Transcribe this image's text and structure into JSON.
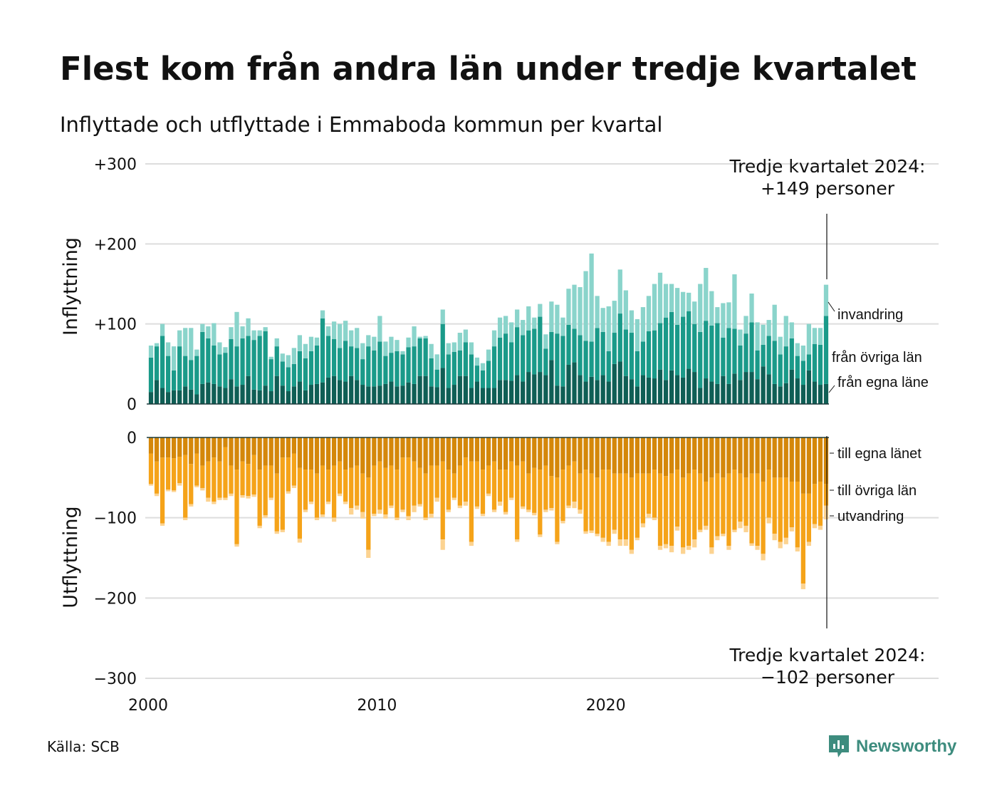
{
  "title": "Flest kom från andra län under tredje kvartalet",
  "subtitle": "Inflyttade och utflyttade i Emmaboda kommun per kvartal",
  "source": "Källa: SCB",
  "brand": "Newsworthy",
  "colors": {
    "in_own": "#0f5e55",
    "in_other": "#1a9a89",
    "in_immig": "#8ad4cb",
    "out_own": "#d4870a",
    "out_other": "#f5a319",
    "out_emig": "#fcd391",
    "grid": "#dddddd",
    "brand": "#3d8c7e"
  },
  "annotations": {
    "top": [
      "Tredje kvartalet 2024:",
      "+149 personer"
    ],
    "bottom": [
      "Tredje kvartalet 2024:",
      "−102 personer"
    ]
  },
  "chart_data": [
    {
      "type": "bar",
      "stacked": true,
      "ylabel": "Inflyttning",
      "ylim": [
        0,
        300
      ],
      "yticks": [
        "0",
        "+100",
        "+200",
        "+300"
      ],
      "x_start": "2000 Q1",
      "x_end": "2024 Q3",
      "xticks": [
        "2000",
        "2010",
        "2020"
      ],
      "series": [
        {
          "name": "från egna läne",
          "values": [
            15,
            30,
            20,
            15,
            17,
            17,
            22,
            18,
            12,
            25,
            27,
            25,
            22,
            20,
            31,
            22,
            24,
            35,
            18,
            17,
            23,
            16,
            35,
            23,
            16,
            22,
            28,
            17,
            24,
            25,
            27,
            33,
            35,
            30,
            28,
            35,
            30,
            24,
            22,
            22,
            23,
            25,
            28,
            22,
            23,
            27,
            25,
            35,
            35,
            22,
            21,
            45,
            20,
            24,
            35,
            35,
            20,
            28,
            20,
            20,
            20,
            30,
            30,
            29,
            36,
            28,
            40,
            37,
            40,
            36,
            55,
            23,
            22,
            49,
            52,
            36,
            28,
            34,
            30,
            36,
            28,
            50,
            53,
            35,
            31,
            22,
            36,
            33,
            32,
            43,
            30,
            42,
            36,
            33,
            44,
            40,
            20,
            32,
            28,
            25,
            35,
            25,
            38,
            30,
            40,
            40,
            31,
            47,
            37,
            25,
            22,
            26,
            43,
            32,
            24,
            42,
            28,
            24,
            25
          ],
          "label": "från egna läne"
        },
        {
          "name": "från övriga län",
          "values": [
            43,
            42,
            65,
            45,
            25,
            55,
            38,
            37,
            48,
            65,
            55,
            48,
            40,
            44,
            50,
            50,
            58,
            50,
            62,
            68,
            68,
            40,
            37,
            30,
            30,
            28,
            38,
            40,
            42,
            48,
            80,
            52,
            46,
            40,
            51,
            37,
            40,
            32,
            50,
            45,
            55,
            35,
            36,
            44,
            39,
            44,
            47,
            47,
            47,
            35,
            22,
            55,
            42,
            41,
            32,
            42,
            42,
            20,
            22,
            34,
            52,
            53,
            58,
            48,
            60,
            58,
            52,
            57,
            69,
            33,
            35,
            65,
            63,
            50,
            42,
            50,
            51,
            44,
            65,
            54,
            38,
            39,
            60,
            58,
            58,
            44,
            42,
            58,
            60,
            58,
            78,
            73,
            63,
            76,
            72,
            60,
            70,
            72,
            70,
            76,
            48,
            70,
            56,
            43,
            48,
            62,
            36,
            27,
            48,
            54,
            40,
            46,
            39,
            28,
            30,
            20,
            47,
            50,
            85
          ]
        },
        {
          "name": "invandring",
          "values": [
            15,
            4,
            15,
            17,
            30,
            20,
            35,
            40,
            8,
            10,
            15,
            28,
            15,
            7,
            15,
            43,
            15,
            22,
            12,
            7,
            5,
            3,
            10,
            10,
            15,
            20,
            20,
            18,
            18,
            10,
            10,
            12,
            22,
            30,
            25,
            20,
            25,
            20,
            14,
            17,
            32,
            18,
            20,
            14,
            4,
            12,
            25,
            2,
            3,
            18,
            19,
            18,
            14,
            12,
            22,
            16,
            15,
            10,
            9,
            14,
            20,
            25,
            22,
            25,
            22,
            19,
            30,
            14,
            16,
            18,
            38,
            36,
            23,
            45,
            55,
            60,
            87,
            110,
            40,
            30,
            56,
            40,
            55,
            49,
            28,
            40,
            43,
            44,
            58,
            63,
            42,
            35,
            46,
            31,
            23,
            28,
            60,
            66,
            43,
            20,
            43,
            32,
            68,
            20,
            22,
            36,
            35,
            25,
            20,
            45,
            22,
            38,
            20,
            16,
            19,
            38,
            20,
            21,
            39
          ]
        }
      ]
    },
    {
      "type": "bar",
      "stacked": true,
      "ylabel": "Utflyttning",
      "ylim": [
        -300,
        0
      ],
      "yticks": [
        "0",
        "−100",
        "−200",
        "−300"
      ],
      "x_start": "2000 Q1",
      "x_end": "2024 Q3",
      "xticks": [
        "2000",
        "2010",
        "2020"
      ],
      "series": [
        {
          "name": "till egna länet",
          "values": [
            -20,
            -30,
            -25,
            -25,
            -26,
            -24,
            -22,
            -33,
            -20,
            -35,
            -30,
            -25,
            -30,
            -12,
            -35,
            -40,
            -30,
            -33,
            -22,
            -40,
            -35,
            -35,
            -45,
            -25,
            -25,
            -20,
            -38,
            -40,
            -40,
            -45,
            -35,
            -40,
            -35,
            -30,
            -40,
            -38,
            -35,
            -45,
            -50,
            -35,
            -30,
            -38,
            -35,
            -40,
            -25,
            -25,
            -30,
            -38,
            -45,
            -35,
            -35,
            -30,
            -40,
            -45,
            -35,
            -25,
            -30,
            -30,
            -40,
            -35,
            -30,
            -40,
            -40,
            -30,
            -35,
            -30,
            -45,
            -38,
            -40,
            -35,
            -48,
            -50,
            -40,
            -35,
            -30,
            -45,
            -40,
            -45,
            -50,
            -40,
            -40,
            -45,
            -45,
            -45,
            -50,
            -45,
            -45,
            -45,
            -40,
            -45,
            -48,
            -45,
            -40,
            -50,
            -45,
            -40,
            -45,
            -55,
            -50,
            -45,
            -50,
            -45,
            -40,
            -45,
            -50,
            -45,
            -45,
            -55,
            -40,
            -50,
            -50,
            -50,
            -55,
            -55,
            -70,
            -70,
            -58,
            -55,
            -58
          ]
        },
        {
          "name": "till övriga län",
          "values": [
            -38,
            -40,
            -82,
            -40,
            -40,
            -33,
            -78,
            -50,
            -40,
            -28,
            -45,
            -55,
            -45,
            -63,
            -35,
            -93,
            -42,
            -40,
            -49,
            -70,
            -62,
            -40,
            -72,
            -90,
            -42,
            -40,
            -88,
            -50,
            -40,
            -55,
            -61,
            -40,
            -65,
            -40,
            -40,
            -50,
            -50,
            -48,
            -90,
            -60,
            -60,
            -58,
            -50,
            -60,
            -65,
            -73,
            -55,
            -45,
            -55,
            -60,
            -40,
            -97,
            -50,
            -30,
            -50,
            -55,
            -100,
            -56,
            -55,
            -35,
            -60,
            -40,
            -53,
            -45,
            -92,
            -56,
            -45,
            -56,
            -81,
            -55,
            -40,
            -80,
            -64,
            -50,
            -50,
            -45,
            -77,
            -71,
            -70,
            -85,
            -90,
            -70,
            -82,
            -82,
            -90,
            -80,
            -62,
            -50,
            -60,
            -90,
            -85,
            -90,
            -71,
            -87,
            -90,
            -87,
            -70,
            -55,
            -87,
            -78,
            -70,
            -90,
            -75,
            -60,
            -60,
            -87,
            -90,
            -90,
            -60,
            -70,
            -80,
            -75,
            -57,
            -82,
            -112,
            -60,
            -50,
            -55,
            -27
          ]
        },
        {
          "name": "utvandring",
          "values": [
            -2,
            -3,
            -3,
            -2,
            -2,
            -3,
            -3,
            -3,
            -2,
            -3,
            -5,
            -3,
            -3,
            -3,
            -3,
            -3,
            -3,
            -3,
            -3,
            -3,
            -3,
            -3,
            -3,
            -3,
            -3,
            -3,
            -5,
            -3,
            -3,
            -3,
            -3,
            -3,
            -5,
            -3,
            -3,
            -8,
            -5,
            -8,
            -10,
            -3,
            -5,
            -5,
            -3,
            -3,
            -3,
            -5,
            -8,
            -3,
            -3,
            -5,
            -5,
            -13,
            -3,
            -3,
            -3,
            -5,
            -5,
            -3,
            -3,
            -3,
            -3,
            -5,
            -3,
            -3,
            -3,
            -3,
            -3,
            -3,
            -3,
            -3,
            -3,
            -3,
            -3,
            -3,
            -8,
            -5,
            -3,
            -3,
            -3,
            -5,
            -5,
            -5,
            -8,
            -8,
            -5,
            -3,
            -5,
            -5,
            -3,
            -5,
            -5,
            -8,
            -5,
            -8,
            -5,
            -10,
            -3,
            -5,
            -8,
            -5,
            -3,
            -5,
            -3,
            -8,
            -8,
            -3,
            -5,
            -8,
            -7,
            -8,
            -8,
            -8,
            -5,
            -5,
            -7,
            -5,
            -5,
            -5,
            -17
          ]
        }
      ]
    }
  ]
}
